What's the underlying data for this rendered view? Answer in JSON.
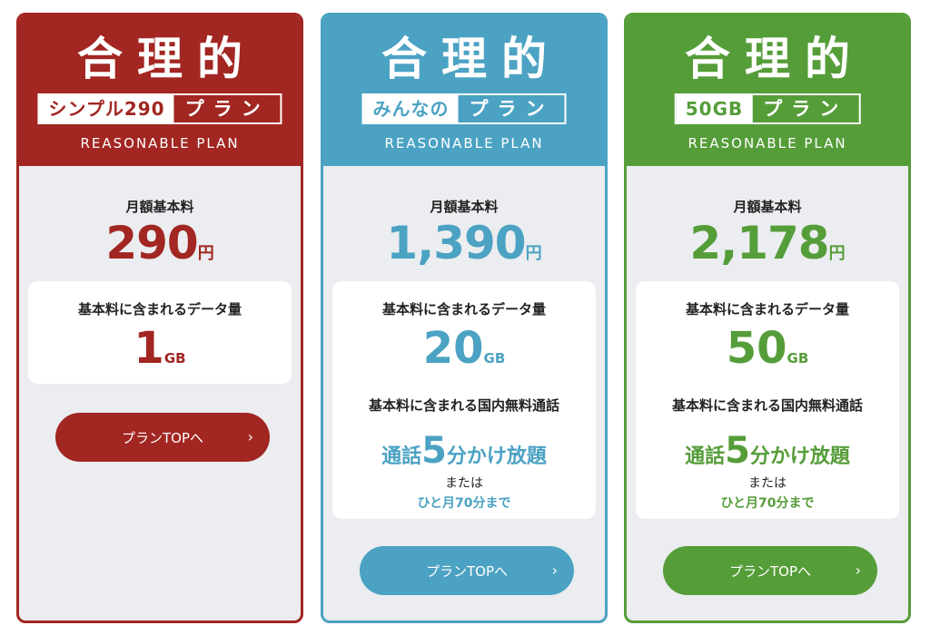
{
  "plans": [
    {
      "title": "合理的",
      "label_left": "シンプル290",
      "label_right": "プラン",
      "subtitle": "REASONABLE PLAN",
      "fee_label": "月額基本料",
      "price": "290",
      "price_unit": "円",
      "data_label": "基本料に含まれるデータ量",
      "data_value": "1",
      "data_unit": "GB",
      "button_label": "プランTOPへ",
      "button_arrow": "›",
      "color": "#a22621"
    },
    {
      "title": "合理的",
      "label_left": "みんなの",
      "label_right": "プラン",
      "subtitle": "REASONABLE PLAN",
      "fee_label": "月額基本料",
      "price": "1,390",
      "price_unit": "円",
      "data_label": "基本料に含まれるデータ量",
      "data_value": "20",
      "data_unit": "GB",
      "call_label": "基本料に含まれる国内無料通話",
      "call_prefix": "通話",
      "call_minutes": "5",
      "call_suffix": "分かけ放題",
      "or_text": "または",
      "call_alt": "ひと月70分まで",
      "button_label": "プランTOPへ",
      "button_arrow": "›",
      "color": "#4ba2c3"
    },
    {
      "title": "合理的",
      "label_left": "50GB",
      "label_right": "プラン",
      "subtitle": "REASONABLE PLAN",
      "fee_label": "月額基本料",
      "price": "2,178",
      "price_unit": "円",
      "data_label": "基本料に含まれるデータ量",
      "data_value": "50",
      "data_unit": "GB",
      "call_label": "基本料に含まれる国内無料通話",
      "call_prefix": "通話",
      "call_minutes": "5",
      "call_suffix": "分かけ放題",
      "or_text": "または",
      "call_alt": "ひと月70分まで",
      "button_label": "プランTOPへ",
      "button_arrow": "›",
      "color": "#559d39"
    }
  ]
}
